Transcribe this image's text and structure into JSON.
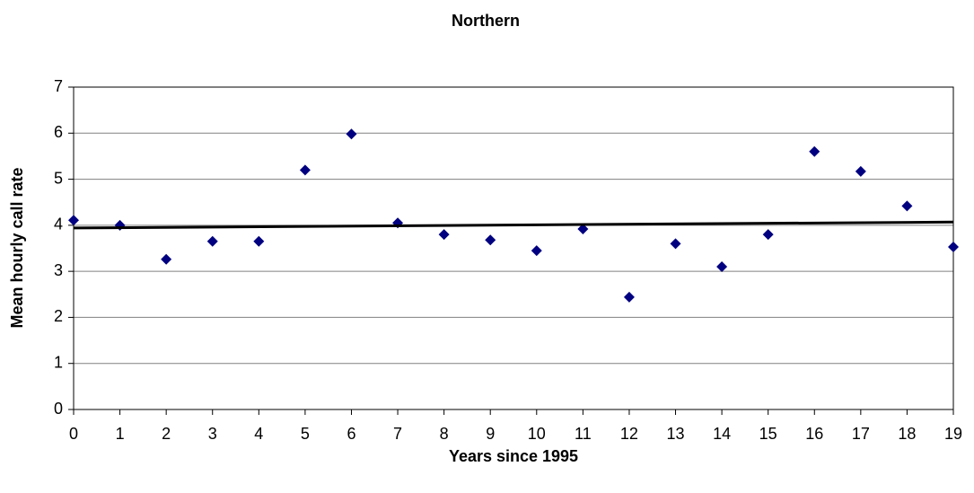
{
  "chart_data": {
    "type": "scatter",
    "title": "Northern",
    "x_label": "Years since 1995",
    "y_label": "Mean hourly call rate",
    "series": [
      {
        "color": "#000080",
        "x": [
          0,
          1,
          2,
          3,
          4,
          5,
          6,
          7,
          8,
          9,
          10,
          11,
          12,
          13,
          14,
          15,
          16,
          17,
          18,
          19
        ],
        "values": [
          4.11,
          4.0,
          3.26,
          3.65,
          3.65,
          5.2,
          5.98,
          4.05,
          3.8,
          3.68,
          3.45,
          3.92,
          2.44,
          3.6,
          3.1,
          3.8,
          5.6,
          5.17,
          4.42,
          3.53
        ]
      }
    ],
    "trendline": {
      "color": "#000000",
      "x": [
        0,
        19
      ],
      "values": [
        3.94,
        4.07
      ]
    },
    "xlim": [
      0,
      19
    ],
    "xticks": [
      0,
      1,
      2,
      3,
      4,
      5,
      6,
      7,
      8,
      9,
      10,
      11,
      12,
      13,
      14,
      15,
      16,
      17,
      18,
      19
    ],
    "ylim": [
      0,
      7
    ],
    "yticks": [
      0,
      1,
      2,
      3,
      4,
      5,
      6,
      7
    ],
    "grid": true
  }
}
